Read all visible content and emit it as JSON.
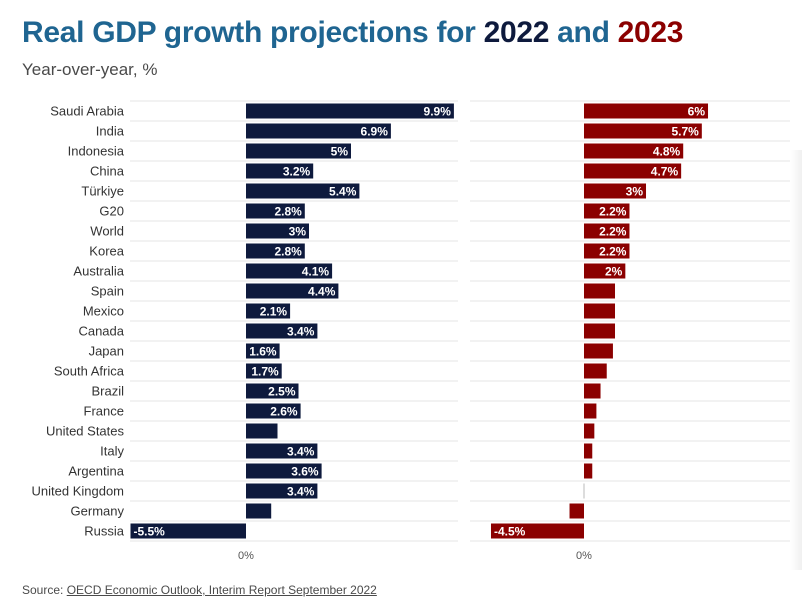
{
  "header": {
    "title_prefix": "Real GDP growth projections for ",
    "title_year1": "2022",
    "title_and": " and ",
    "title_year2": "2023",
    "subtitle": "Year-over-year, %"
  },
  "footer": {
    "source_label": "Source: ",
    "source_link": "OECD Economic Outlook, Interim Report September 2022"
  },
  "colors": {
    "series_2022": "#0e1a3d",
    "series_2023": "#8b0000",
    "title": "#1f6591",
    "gridline": "#e6e6e6",
    "label_text": "#333333"
  },
  "chart_data": {
    "type": "bar",
    "orientation": "horizontal",
    "title": "Real GDP growth projections for 2022 and 2023",
    "subtitle": "Year-over-year, %",
    "categories": [
      "Saudi Arabia",
      "India",
      "Indonesia",
      "China",
      "Türkiye",
      "G20",
      "World",
      "Korea",
      "Australia",
      "Spain",
      "Mexico",
      "Canada",
      "Japan",
      "South Africa",
      "Brazil",
      "France",
      "United States",
      "Italy",
      "Argentina",
      "United Kingdom",
      "Germany",
      "Russia"
    ],
    "series": [
      {
        "name": "2022",
        "values": [
          9.9,
          6.9,
          5,
          3.2,
          5.4,
          2.8,
          3,
          2.8,
          4.1,
          4.4,
          2.1,
          3.4,
          1.6,
          1.7,
          2.5,
          2.6,
          1.5,
          3.4,
          3.6,
          3.4,
          1.2,
          -5.5
        ],
        "labels": [
          "9.9%",
          "6.9%",
          "5%",
          "3.2%",
          "5.4%",
          "2.8%",
          "3%",
          "2.8%",
          "4.1%",
          "4.4%",
          "2.1%",
          "3.4%",
          "1.6%",
          "1.7%",
          "2.5%",
          "2.6%",
          "",
          "3.4%",
          "3.6%",
          "3.4%",
          "",
          "-5.5%"
        ],
        "axis_label": "0%",
        "xlim": [
          -5.5,
          9.9
        ]
      },
      {
        "name": "2023",
        "values": [
          6,
          5.7,
          4.8,
          4.7,
          3,
          2.2,
          2.2,
          2.2,
          2,
          1.5,
          1.5,
          1.5,
          1.4,
          1.1,
          0.8,
          0.6,
          0.5,
          0.4,
          0.4,
          0,
          -0.7,
          -4.5
        ],
        "labels": [
          "6%",
          "5.7%",
          "4.8%",
          "4.7%",
          "3%",
          "2.2%",
          "2.2%",
          "2.2%",
          "2%",
          "",
          "",
          "",
          "",
          "",
          "",
          "",
          "",
          "",
          "",
          "",
          "",
          "-4.5%"
        ],
        "axis_label": "0%",
        "xlim": [
          -4.5,
          6
        ]
      }
    ],
    "grid": true,
    "legend": "none"
  }
}
